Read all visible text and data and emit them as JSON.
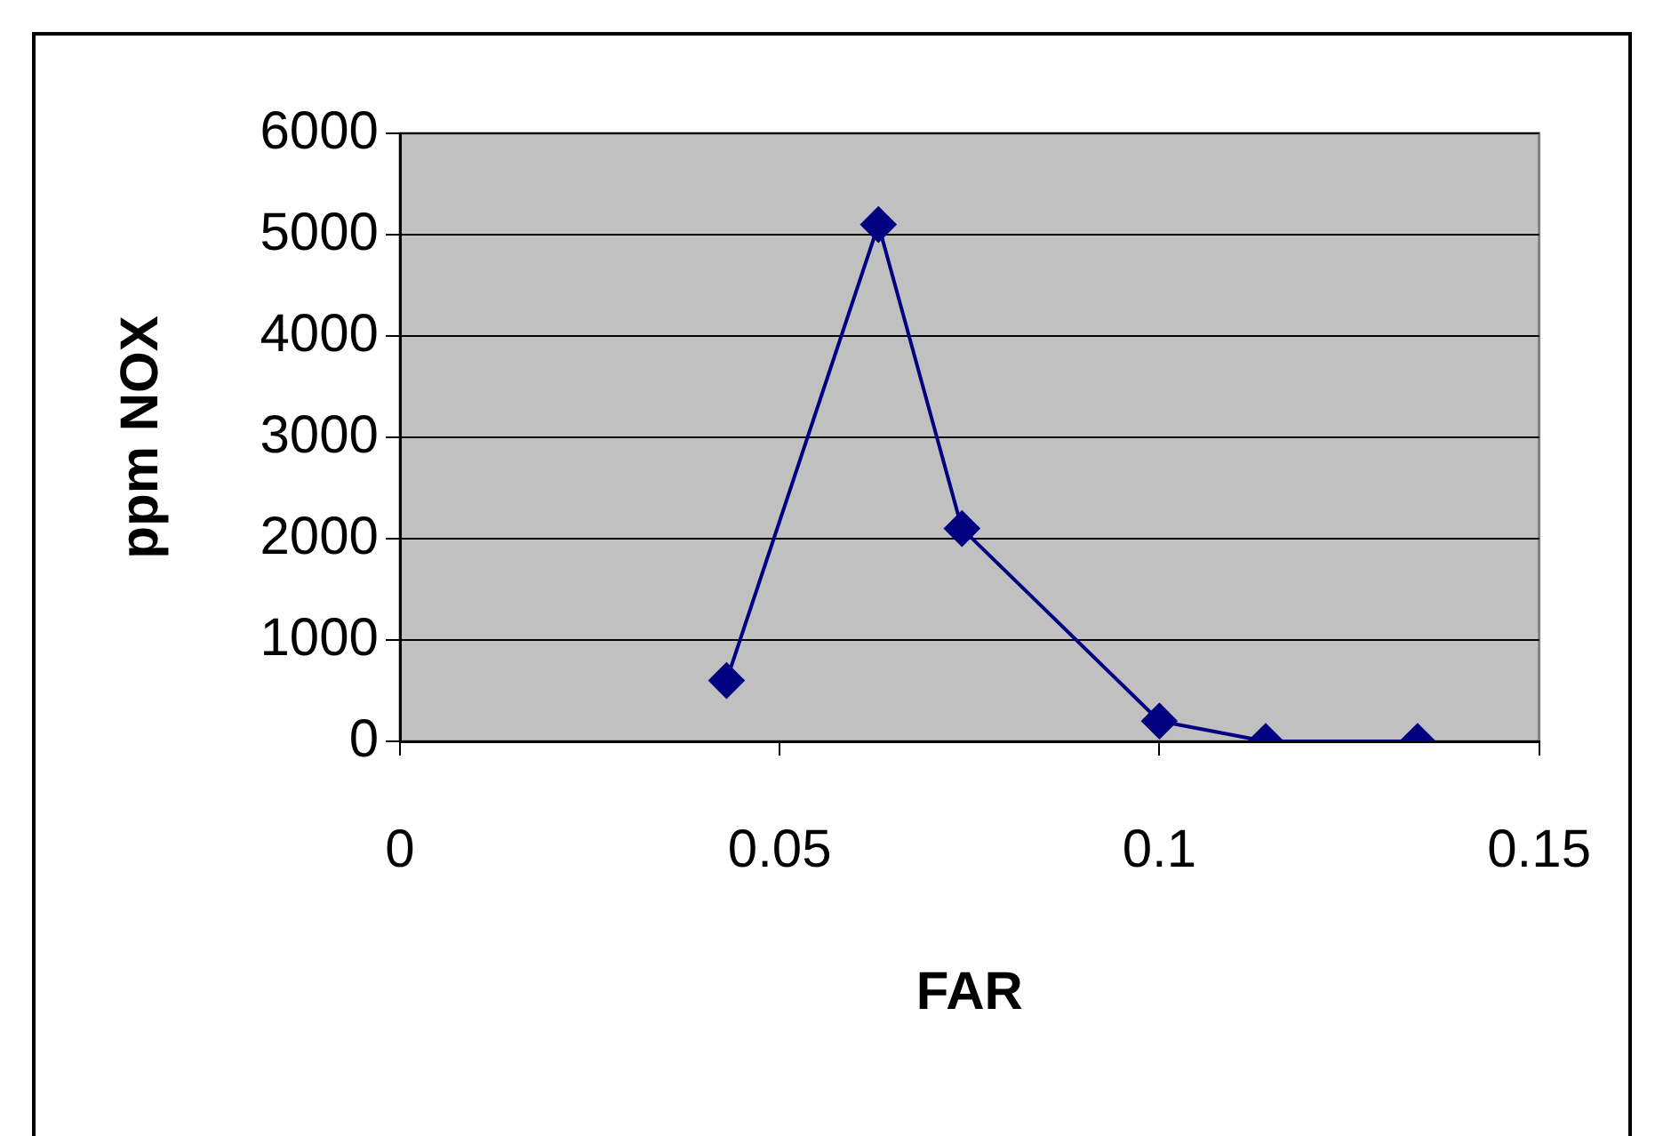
{
  "chart_data": {
    "type": "line",
    "xlabel": "FAR",
    "ylabel": "ppm NOX",
    "series": [
      {
        "color": "#000080",
        "x": [
          0.043,
          0.063,
          0.074,
          0.1,
          0.114,
          0.134
        ],
        "values": [
          600,
          5100,
          2100,
          200,
          0,
          0
        ]
      }
    ],
    "xlim": [
      0,
      0.15
    ],
    "xticks": [
      0,
      0.05,
      0.1,
      0.15
    ],
    "ylim": [
      0,
      6000
    ],
    "yticks": [
      0,
      1000,
      2000,
      3000,
      4000,
      5000,
      6000
    ],
    "grid": "y",
    "legend": false,
    "marker": "diamond",
    "line_style": "solid"
  }
}
